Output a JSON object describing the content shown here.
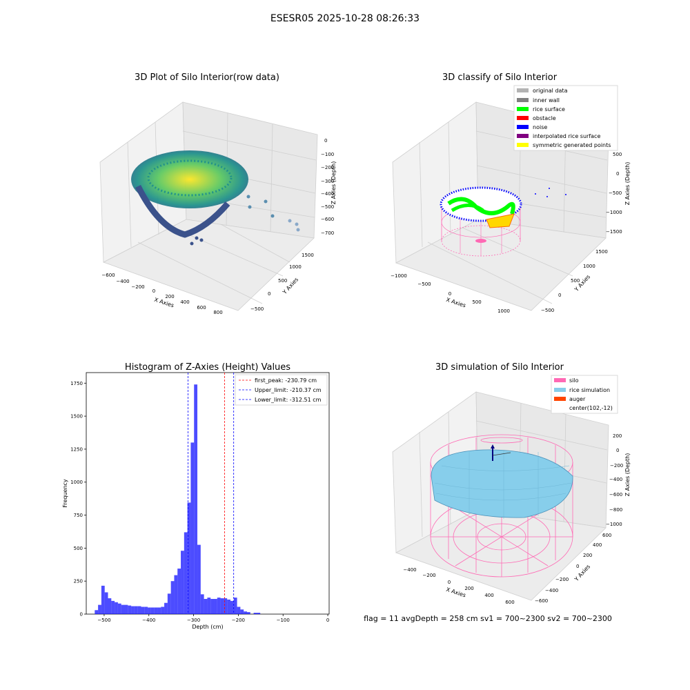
{
  "figure": {
    "suptitle": "ESESR05 2025-10-28 08:26:33",
    "footer": "flag = 11   avgDepth = 258 cm  sv1 = 700~2300  sv2 = 700~2300"
  },
  "panels": {
    "raw": {
      "title": "3D Plot of Silo Interior(row data)",
      "x_ticks": [
        "−600",
        "−400",
        "−200",
        "0",
        "200",
        "400",
        "600",
        "800"
      ],
      "y_ticks": [
        "−500",
        "0",
        "500",
        "1000",
        "1500"
      ],
      "z_ticks": [
        "0",
        "−100",
        "−200",
        "−300",
        "−400",
        "−500",
        "−600",
        "−700"
      ],
      "xlabel": "X Axies",
      "ylabel": "Y Axies",
      "zlabel": "Z Axies (Depth)"
    },
    "classify": {
      "title": "3D classify of Silo Interior",
      "x_ticks": [
        "−1000",
        "−500",
        "0",
        "500",
        "1000"
      ],
      "y_ticks": [
        "−500",
        "0",
        "500",
        "1000",
        "1500"
      ],
      "z_ticks": [
        "500",
        "0",
        "−500",
        "−1000",
        "−1500"
      ],
      "xlabel": "X Axies",
      "ylabel": "Y Axies",
      "zlabel": "Z Axies (Depth)",
      "legend": [
        {
          "label": "original data",
          "color": "#b3b3b3"
        },
        {
          "label": "inner wall",
          "color": "#808080"
        },
        {
          "label": "rice surface",
          "color": "#00ff00"
        },
        {
          "label": "obstacle",
          "color": "#ff0000"
        },
        {
          "label": "noise",
          "color": "#0000ff"
        },
        {
          "label": "interpolated rice surface",
          "color": "#800080"
        },
        {
          "label": "symmetric generated points",
          "color": "#ffff00"
        }
      ]
    },
    "simulation": {
      "title": "3D simulation of Silo Interior",
      "x_ticks": [
        "−400",
        "−200",
        "0",
        "200",
        "400",
        "600"
      ],
      "y_ticks": [
        "−600",
        "−400",
        "−200",
        "0",
        "200",
        "400",
        "600"
      ],
      "z_ticks": [
        "200",
        "0",
        "−200",
        "−400",
        "−600",
        "−800",
        "−1000"
      ],
      "xlabel": "X Axies",
      "ylabel": "Y Axies",
      "zlabel": "Z Axies (Depth)",
      "legend": [
        {
          "label": "silo",
          "color": "#ff69b4"
        },
        {
          "label": "rice simulation",
          "color": "#87ceeb"
        },
        {
          "label": "auger",
          "color": "#ff4500"
        },
        {
          "label": "center(102,-12)",
          "color": ""
        }
      ]
    }
  },
  "chart_data": {
    "type": "bar",
    "title": "Histogram of Z-Axies (Height) Values",
    "xlabel": "Depth (cm)",
    "ylabel": "Frequency",
    "xlim": [
      -540,
      3
    ],
    "ylim": [
      0,
      1830
    ],
    "bin_width": 7.4,
    "bin_start": -521,
    "values": [
      30,
      70,
      215,
      165,
      120,
      100,
      90,
      80,
      70,
      70,
      65,
      60,
      60,
      60,
      55,
      55,
      50,
      50,
      50,
      50,
      55,
      85,
      155,
      250,
      295,
      345,
      480,
      620,
      845,
      1300,
      1740,
      525,
      150,
      115,
      125,
      115,
      115,
      125,
      120,
      120,
      110,
      100,
      125,
      55,
      35,
      20,
      15,
      0,
      10,
      10
    ],
    "color": "#0000ff",
    "x_ticks": [
      -500,
      -400,
      -300,
      -200,
      -100,
      0
    ],
    "x_tick_labels": [
      "−500",
      "−400",
      "−300",
      "−200",
      "−100",
      "0"
    ],
    "y_ticks": [
      0,
      250,
      500,
      750,
      1000,
      1250,
      1500,
      1750
    ],
    "y_tick_labels": [
      "0",
      "250",
      "500",
      "750",
      "1000",
      "1250",
      "1500",
      "1750"
    ],
    "vlines": [
      {
        "x": -230.79,
        "color": "#ff0000",
        "label": "first_peak: -230.79 cm"
      },
      {
        "x": -210.37,
        "color": "#0000ff",
        "label": "Upper_limit: -210.37 cm"
      },
      {
        "x": -312.51,
        "color": "#0000ff",
        "label": "Lower_limit: -312.51 cm"
      }
    ],
    "legend_position": "upper right"
  }
}
